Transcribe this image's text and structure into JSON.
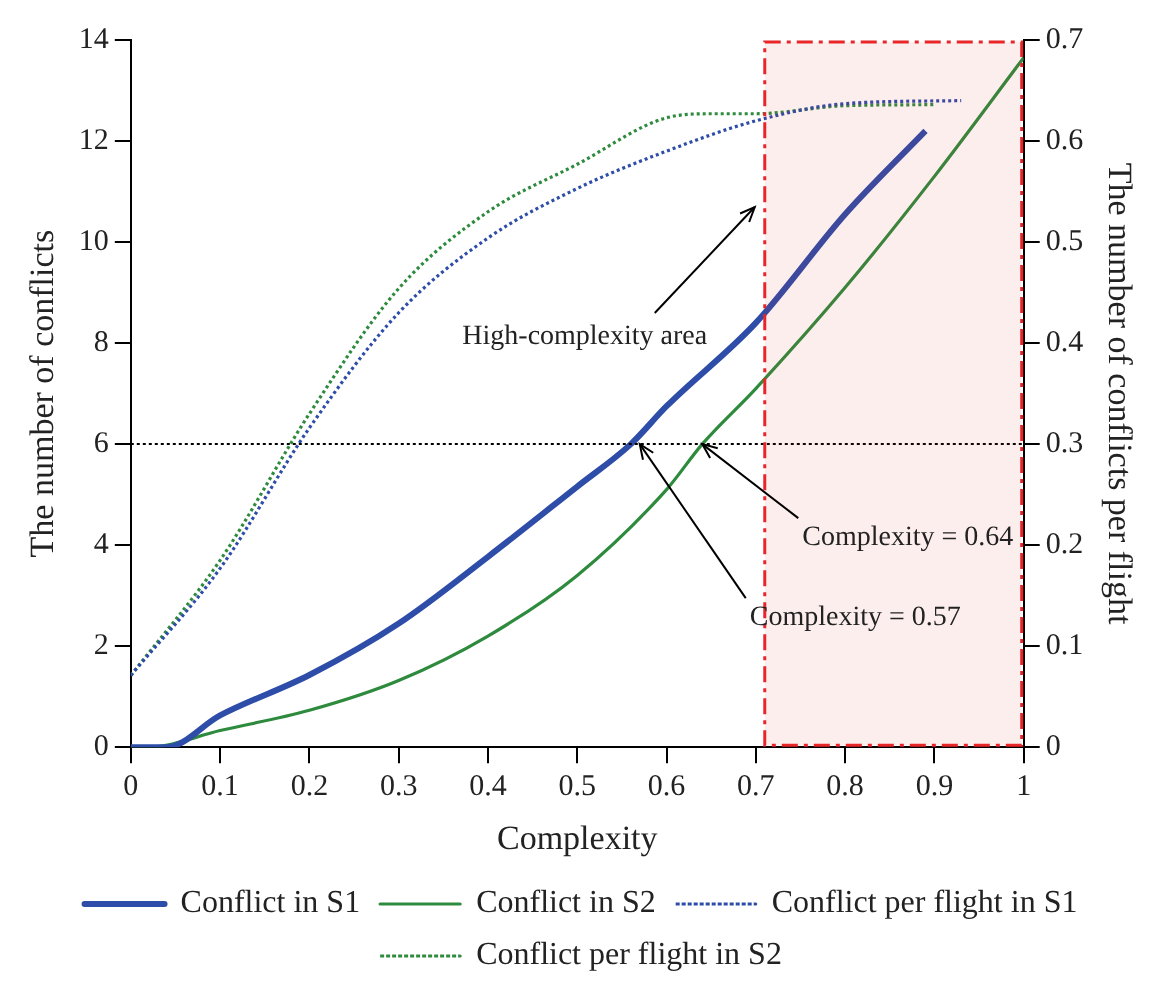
{
  "chart_data": {
    "type": "line",
    "xlabel": "Complexity",
    "ylabel": "The number of conflicts",
    "y2label": "The number of conflicts per flight",
    "xlim": [
      0,
      1
    ],
    "xticks": [
      0,
      0.1,
      0.2,
      0.3,
      0.4,
      0.5,
      0.6,
      0.7,
      0.8,
      0.9,
      1
    ],
    "ylim": [
      0,
      14
    ],
    "yticks": [
      0,
      2,
      4,
      6,
      8,
      10,
      12,
      14
    ],
    "y2lim": [
      0,
      0.7
    ],
    "y2ticks": [
      0,
      0.1,
      0.2,
      0.3,
      0.4,
      0.5,
      0.6,
      0.7
    ],
    "grid": false,
    "legend": "bottom",
    "marker": "none",
    "series": [
      {
        "name": "Conflict in S1",
        "color": "#2e4da8",
        "line_style": "solid",
        "x": [
          0,
          0.04,
          0.1,
          0.2,
          0.3,
          0.4,
          0.5,
          0.56,
          0.6,
          0.7,
          0.8,
          0.89
        ],
        "values": [
          0,
          0,
          0.63,
          1.43,
          2.45,
          3.77,
          5.16,
          6,
          6.75,
          8.4,
          10.55,
          12.2
        ]
      },
      {
        "name": "Conflict in S2",
        "color": "#2e8b3e",
        "line_style": "solid",
        "x": [
          0,
          0.02,
          0.1,
          0.2,
          0.3,
          0.4,
          0.5,
          0.6,
          0.64,
          0.7,
          0.8,
          0.9,
          1
        ],
        "values": [
          0,
          0,
          0.33,
          0.73,
          1.32,
          2.2,
          3.4,
          5.1,
          6,
          7.1,
          9.1,
          11.3,
          13.65
        ]
      },
      {
        "name": "Conflict per flight in S1",
        "color": "#2e4da8",
        "line_style": "dotted",
        "axis": "y2",
        "x": [
          0,
          0.1,
          0.2,
          0.3,
          0.4,
          0.5,
          0.6,
          0.7,
          0.8,
          0.93
        ],
        "values": [
          0.071,
          0.177,
          0.316,
          0.43,
          0.504,
          0.553,
          0.59,
          0.62,
          0.637,
          0.64
        ]
      },
      {
        "name": "Conflict per flight in S2",
        "color": "#2e8b3e",
        "line_style": "dotted",
        "axis": "y2",
        "x": [
          0,
          0.1,
          0.2,
          0.3,
          0.4,
          0.5,
          0.6,
          0.65,
          0.7,
          0.8,
          0.9
        ],
        "values": [
          0.071,
          0.185,
          0.33,
          0.454,
          0.53,
          0.577,
          0.623,
          0.627,
          0.627,
          0.635,
          0.636
        ]
      }
    ],
    "ref_lines": [
      {
        "axis": "y",
        "value": 6,
        "color": "#000000",
        "line_style": "dotted"
      }
    ],
    "bands": [
      {
        "axis": "x",
        "from": 0.71,
        "to": 1,
        "color": "#e8262a"
      }
    ],
    "annotations": [
      "High-complexity area",
      {
        "text": "Complexity = 0.64",
        "x": 0.64,
        "y": 6
      },
      {
        "text": "Complexity = 0.57",
        "x": 0.57,
        "y": 6
      }
    ]
  }
}
